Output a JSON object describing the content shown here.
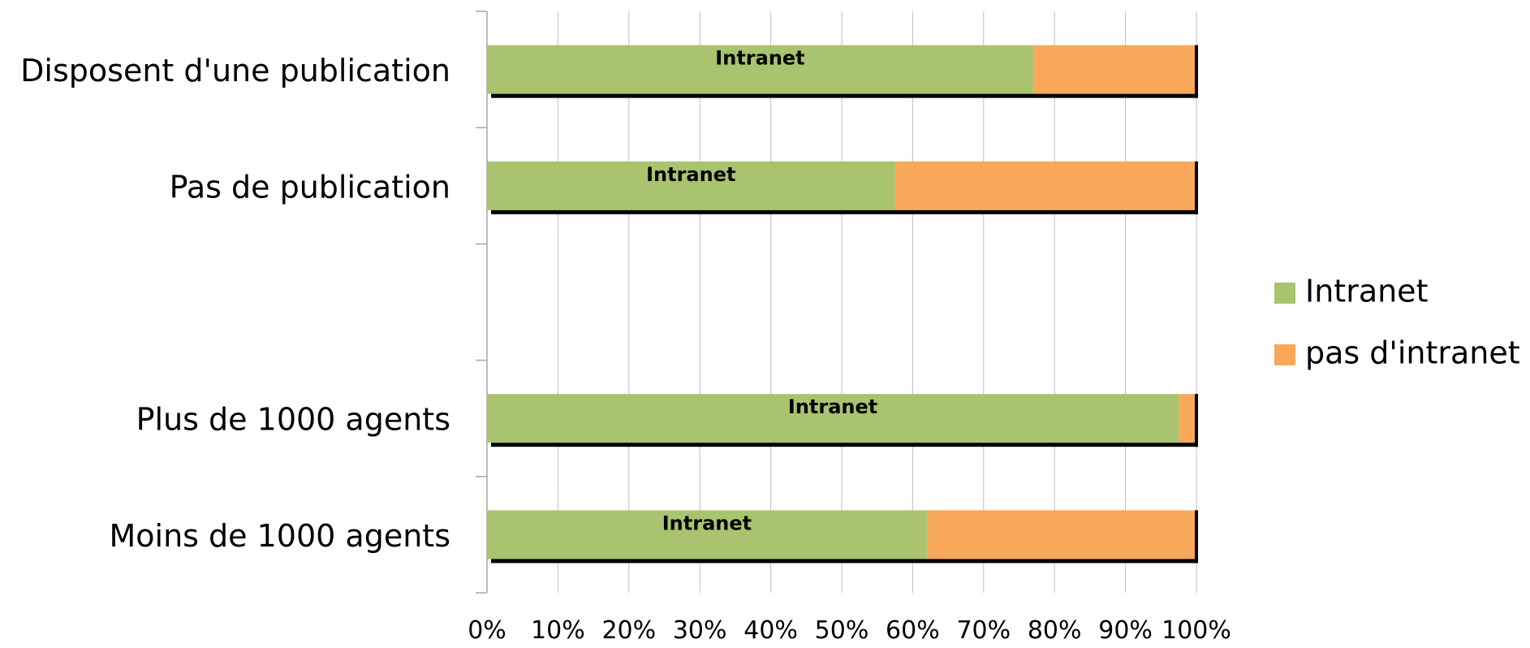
{
  "chart_data": {
    "type": "bar",
    "orientation": "horizontal",
    "stacked": true,
    "percent_stacked": true,
    "categories": [
      "Disposent d'une publication",
      "Pas de publication",
      "",
      "Plus de 1000 agents",
      "Moins de 1000 agents"
    ],
    "series": [
      {
        "name": "Intranet",
        "color": "#A9C46E",
        "values": [
          77,
          57.5,
          null,
          97.5,
          62
        ]
      },
      {
        "name": "pas d'intranet",
        "color": "#F9A85A",
        "values": [
          23,
          42.5,
          null,
          2.5,
          38
        ]
      }
    ],
    "bar_labels": [
      "Intranet",
      "Intranet",
      "",
      "Intranet",
      "Intranet"
    ],
    "xlim": [
      0,
      100
    ],
    "x_ticks": [
      "0%",
      "10%",
      "20%",
      "30%",
      "40%",
      "50%",
      "60%",
      "70%",
      "80%",
      "90%",
      "100%"
    ],
    "grid": true,
    "legend_position": "right",
    "legend": [
      "Intranet",
      "pas d'intranet"
    ]
  }
}
